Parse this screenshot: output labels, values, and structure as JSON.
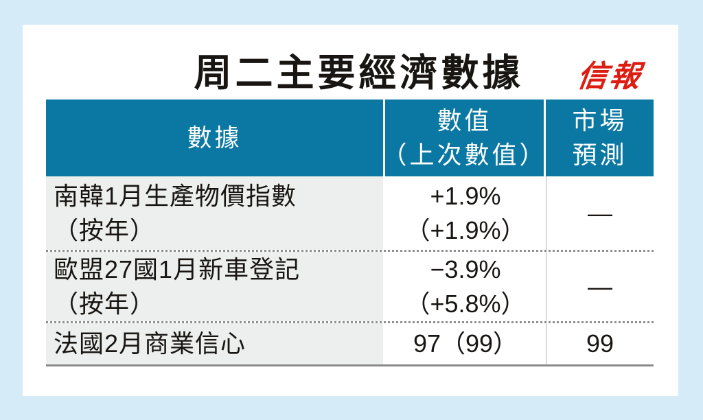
{
  "title": "周二主要經濟數據",
  "logo": {
    "text": "信報"
  },
  "colors": {
    "page_bg": "#d5ecf8",
    "card_bg": "#ffffff",
    "header_bg": "#0a78a2",
    "header_text": "#ffffff",
    "label_col_bg": "#ecefee",
    "logo_red": "#dd1d12",
    "text": "#181512",
    "divider": "#8a8a8a"
  },
  "table": {
    "header": {
      "col1": "數據",
      "col2_line1": "數值",
      "col2_line2": "（上次數值）",
      "col3_line1": "市場",
      "col3_line2": "預測"
    },
    "rows": [
      {
        "name_line1": "南韓1月生產物價指數",
        "name_line2": "（按年）",
        "value_line1": "+1.9%",
        "value_line2": "（+1.9%）",
        "forecast": "—"
      },
      {
        "name_line1": "歐盟27國1月新車登記",
        "name_line2": "（按年）",
        "value_line1": "−3.9%",
        "value_line2": "（+5.8%）",
        "forecast": "—"
      },
      {
        "name_line1": "法國2月商業信心",
        "name_line2": "",
        "value_line1": "97（99）",
        "value_line2": "",
        "forecast": "99"
      }
    ]
  },
  "chart_data": {
    "type": "table",
    "title": "周二主要經濟數據",
    "columns": [
      "數據",
      "數值（上次數值）",
      "市場預測"
    ],
    "rows": [
      [
        "南韓1月生產物價指數（按年）",
        "+1.9%（+1.9%）",
        "—"
      ],
      [
        "歐盟27國1月新車登記（按年）",
        "−3.9%（+5.8%）",
        "—"
      ],
      [
        "法國2月商業信心",
        "97（99）",
        "99"
      ]
    ]
  }
}
